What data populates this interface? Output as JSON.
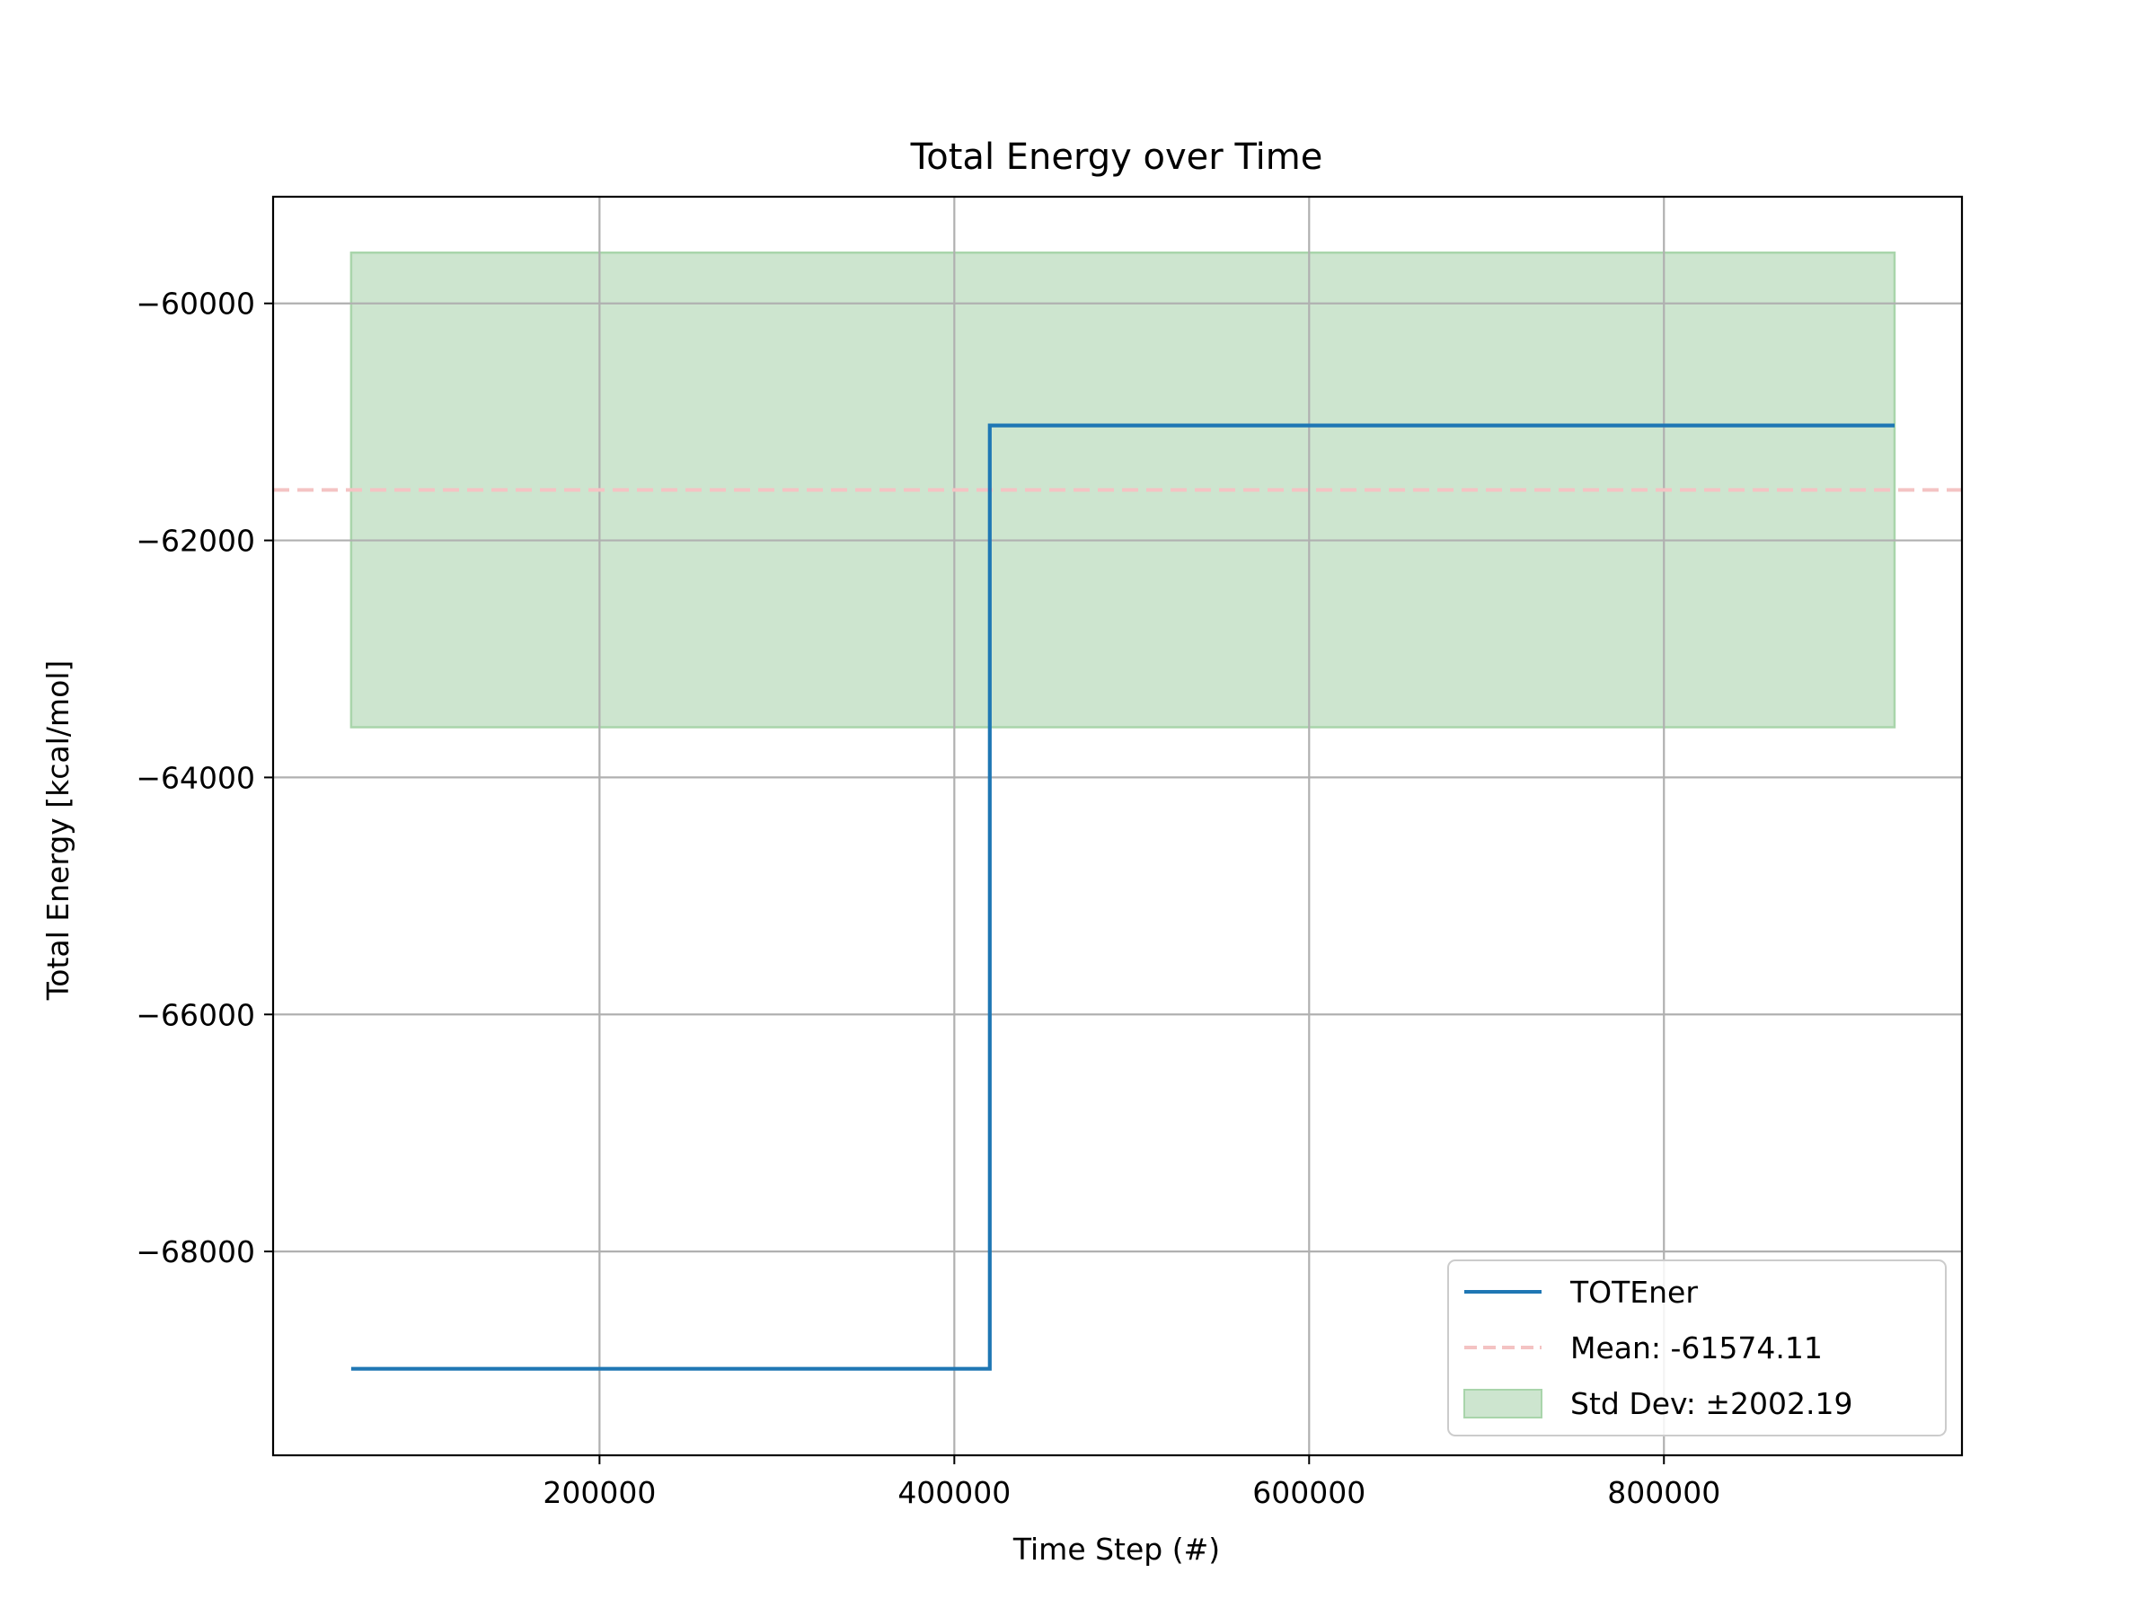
{
  "chart_data": {
    "type": "line",
    "title": "Total Energy over Time",
    "xlabel": "Time Step (#)",
    "ylabel": "Total Energy [kcal/mol]",
    "xlim": [
      16000,
      968000
    ],
    "ylim": [
      -69720,
      -59100
    ],
    "xticks": [
      200000,
      400000,
      600000,
      800000
    ],
    "xtick_labels": [
      "200000",
      "400000",
      "600000",
      "800000"
    ],
    "yticks": [
      -68000,
      -66000,
      -64000,
      -62000,
      -60000
    ],
    "ytick_labels": [
      "−68000",
      "−66000",
      "−64000",
      "−62000",
      "−60000"
    ],
    "grid": true,
    "legend_position": "lower-right",
    "series": [
      {
        "name": "TOTEner",
        "color": "#1f77b4",
        "x": [
          60000,
          420000,
          420000,
          930000
        ],
        "y": [
          -68990,
          -68990,
          -61030,
          -61030
        ]
      }
    ],
    "mean": {
      "label": "Mean: -61574.11",
      "value": -61574.11,
      "color": "#f4c3c3"
    },
    "std_band": {
      "label": "Std Dev: ±2002.19",
      "x_range": [
        60000,
        930000
      ],
      "lower": -63576.3,
      "upper": -59571.92,
      "fill_color": "#cde5cf",
      "edge_color": "#a9d5ab"
    }
  }
}
